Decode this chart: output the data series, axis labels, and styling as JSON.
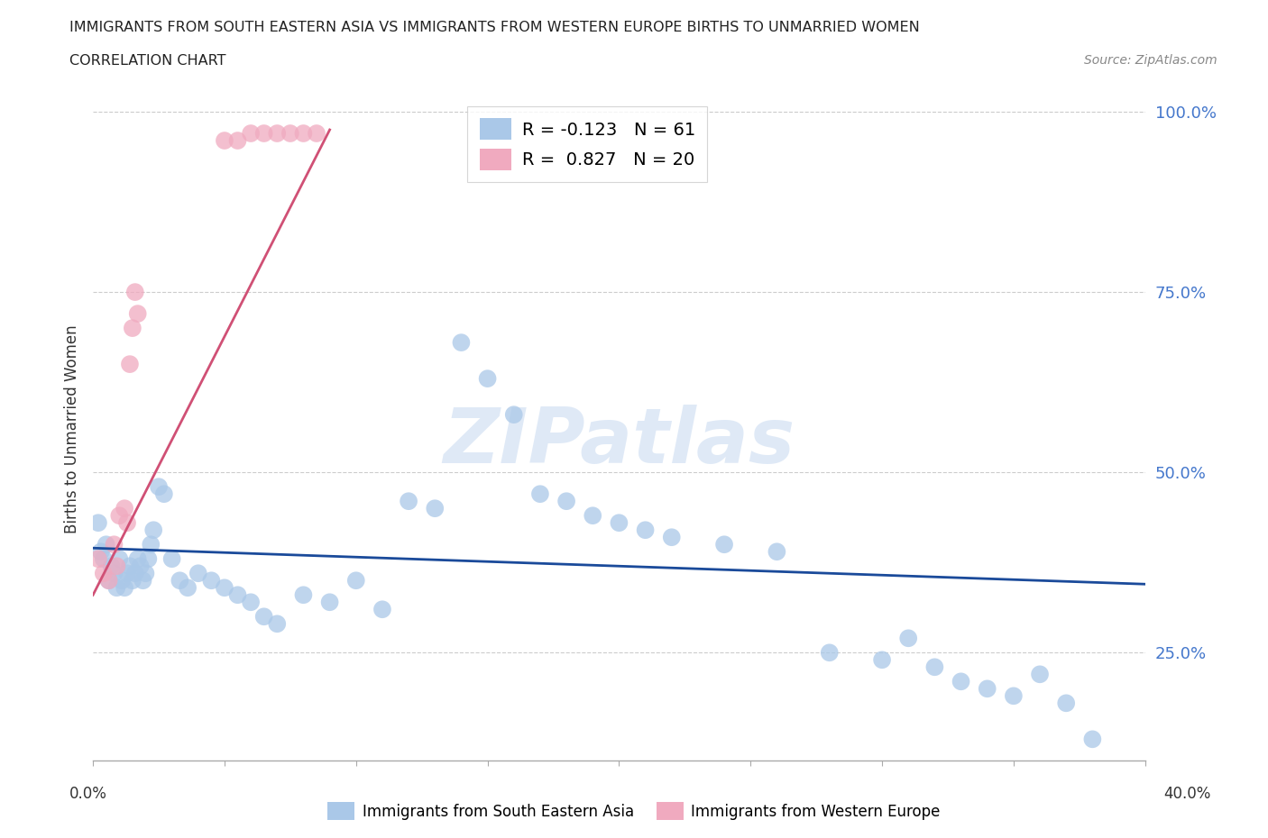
{
  "title_line1": "IMMIGRANTS FROM SOUTH EASTERN ASIA VS IMMIGRANTS FROM WESTERN EUROPE BIRTHS TO UNMARRIED WOMEN",
  "title_line2": "CORRELATION CHART",
  "source": "Source: ZipAtlas.com",
  "ylabel": "Births to Unmarried Women",
  "blue_R": -0.123,
  "blue_N": 61,
  "pink_R": 0.827,
  "pink_N": 20,
  "blue_color": "#aac8e8",
  "pink_color": "#f0aabf",
  "blue_line_color": "#1a4a9a",
  "pink_line_color": "#d05075",
  "watermark_text": "ZIPatlas",
  "legend_label_blue": "Immigrants from South Eastern Asia",
  "legend_label_pink": "Immigrants from Western Europe",
  "xlim": [
    0.0,
    0.4
  ],
  "ylim": [
    0.1,
    1.02
  ],
  "ytick_positions": [
    0.25,
    0.5,
    0.75,
    1.0
  ],
  "ytick_labels": [
    "25.0%",
    "50.0%",
    "75.0%",
    "100.0%"
  ],
  "blue_scatter_x": [
    0.002,
    0.003,
    0.004,
    0.005,
    0.006,
    0.007,
    0.008,
    0.009,
    0.01,
    0.011,
    0.012,
    0.013,
    0.014,
    0.015,
    0.016,
    0.017,
    0.018,
    0.019,
    0.02,
    0.021,
    0.022,
    0.023,
    0.025,
    0.027,
    0.03,
    0.033,
    0.036,
    0.04,
    0.045,
    0.05,
    0.055,
    0.06,
    0.065,
    0.07,
    0.08,
    0.09,
    0.1,
    0.11,
    0.12,
    0.13,
    0.14,
    0.15,
    0.16,
    0.17,
    0.18,
    0.19,
    0.2,
    0.21,
    0.22,
    0.24,
    0.26,
    0.28,
    0.3,
    0.31,
    0.32,
    0.33,
    0.34,
    0.35,
    0.36,
    0.37,
    0.38
  ],
  "blue_scatter_y": [
    0.43,
    0.39,
    0.38,
    0.4,
    0.35,
    0.37,
    0.36,
    0.34,
    0.38,
    0.35,
    0.34,
    0.36,
    0.37,
    0.35,
    0.36,
    0.38,
    0.37,
    0.35,
    0.36,
    0.38,
    0.4,
    0.42,
    0.48,
    0.47,
    0.38,
    0.35,
    0.34,
    0.36,
    0.35,
    0.34,
    0.33,
    0.32,
    0.3,
    0.29,
    0.33,
    0.32,
    0.35,
    0.31,
    0.46,
    0.45,
    0.68,
    0.63,
    0.58,
    0.47,
    0.46,
    0.44,
    0.43,
    0.42,
    0.41,
    0.4,
    0.39,
    0.25,
    0.24,
    0.27,
    0.23,
    0.21,
    0.2,
    0.19,
    0.22,
    0.18,
    0.13
  ],
  "pink_scatter_x": [
    0.002,
    0.004,
    0.006,
    0.008,
    0.009,
    0.01,
    0.012,
    0.013,
    0.014,
    0.015,
    0.016,
    0.017,
    0.05,
    0.055,
    0.06,
    0.065,
    0.07,
    0.075,
    0.08,
    0.085
  ],
  "pink_scatter_y": [
    0.38,
    0.36,
    0.35,
    0.4,
    0.37,
    0.44,
    0.45,
    0.43,
    0.65,
    0.7,
    0.75,
    0.72,
    0.96,
    0.96,
    0.97,
    0.97,
    0.97,
    0.97,
    0.97,
    0.97
  ],
  "blue_trend_x": [
    0.0,
    0.4
  ],
  "blue_trend_y": [
    0.395,
    0.345
  ],
  "pink_trend_x": [
    0.0,
    0.09
  ],
  "pink_trend_y": [
    0.33,
    0.975
  ]
}
